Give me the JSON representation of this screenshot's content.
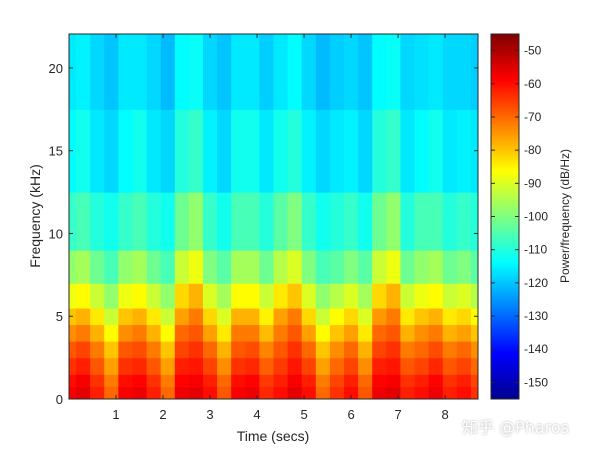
{
  "chart_data": {
    "type": "heatmap",
    "title": "",
    "xlabel": "Time (secs)",
    "ylabel": "Frequency (kHz)",
    "colorbar_label": "Power/frequency (dB/Hz)",
    "xlim": [
      0,
      8.7
    ],
    "ylim": [
      0,
      22.05
    ],
    "xticks": [
      1,
      2,
      3,
      4,
      5,
      6,
      7,
      8
    ],
    "yticks": [
      0,
      5,
      10,
      15,
      20
    ],
    "clim": [
      -155,
      -45
    ],
    "cticks": [
      -50,
      -60,
      -70,
      -80,
      -90,
      -100,
      -110,
      -120,
      -130,
      -140,
      -150
    ],
    "colormap": "jet",
    "grid": false,
    "time_bins": [
      0.0,
      0.3,
      0.6,
      0.9,
      1.2,
      1.5,
      1.8,
      2.1,
      2.4,
      2.7,
      3.0,
      3.3,
      3.6,
      3.9,
      4.2,
      4.5,
      4.8,
      5.1,
      5.4,
      5.7,
      6.0,
      6.3,
      6.6,
      6.9,
      7.2,
      7.5,
      7.8,
      8.1,
      8.4,
      8.7
    ],
    "frequency_bins_khz": [
      0.5,
      1,
      2,
      3,
      4,
      5,
      6,
      8,
      10,
      15,
      20
    ],
    "power_db_per_hz": [
      [
        -58,
        -60,
        -64,
        -68,
        -74,
        -80,
        -88,
        -98,
        -108,
        -114,
        -116
      ],
      [
        -56,
        -58,
        -62,
        -66,
        -72,
        -78,
        -86,
        -96,
        -106,
        -112,
        -115
      ],
      [
        -62,
        -64,
        -68,
        -72,
        -78,
        -84,
        -92,
        -102,
        -110,
        -116,
        -118
      ],
      [
        -70,
        -72,
        -76,
        -80,
        -86,
        -92,
        -98,
        -106,
        -112,
        -118,
        -120
      ],
      [
        -58,
        -60,
        -64,
        -68,
        -74,
        -80,
        -88,
        -98,
        -108,
        -114,
        -116
      ],
      [
        -57,
        -59,
        -63,
        -67,
        -72,
        -78,
        -86,
        -96,
        -106,
        -112,
        -116
      ],
      [
        -62,
        -64,
        -68,
        -72,
        -78,
        -84,
        -92,
        -102,
        -110,
        -116,
        -118
      ],
      [
        -70,
        -72,
        -76,
        -80,
        -86,
        -92,
        -98,
        -106,
        -112,
        -118,
        -121
      ],
      [
        -57,
        -59,
        -62,
        -66,
        -70,
        -76,
        -82,
        -92,
        -102,
        -110,
        -114
      ],
      [
        -56,
        -58,
        -61,
        -64,
        -68,
        -72,
        -78,
        -88,
        -98,
        -108,
        -113
      ],
      [
        -60,
        -62,
        -66,
        -70,
        -76,
        -82,
        -90,
        -100,
        -108,
        -115,
        -118
      ],
      [
        -68,
        -70,
        -74,
        -78,
        -84,
        -90,
        -96,
        -104,
        -112,
        -118,
        -120
      ],
      [
        -58,
        -60,
        -64,
        -68,
        -72,
        -78,
        -86,
        -96,
        -106,
        -112,
        -116
      ],
      [
        -57,
        -59,
        -63,
        -67,
        -72,
        -78,
        -86,
        -96,
        -106,
        -112,
        -116
      ],
      [
        -63,
        -65,
        -69,
        -73,
        -79,
        -85,
        -92,
        -102,
        -110,
        -116,
        -119
      ],
      [
        -60,
        -62,
        -65,
        -68,
        -72,
        -76,
        -84,
        -94,
        -104,
        -112,
        -116
      ],
      [
        -56,
        -58,
        -61,
        -64,
        -68,
        -72,
        -80,
        -90,
        -100,
        -110,
        -114
      ],
      [
        -60,
        -62,
        -66,
        -70,
        -76,
        -82,
        -90,
        -100,
        -108,
        -115,
        -118
      ],
      [
        -70,
        -72,
        -76,
        -80,
        -86,
        -92,
        -98,
        -106,
        -112,
        -118,
        -121
      ],
      [
        -64,
        -66,
        -70,
        -74,
        -80,
        -86,
        -94,
        -104,
        -110,
        -116,
        -119
      ],
      [
        -60,
        -62,
        -66,
        -70,
        -76,
        -82,
        -90,
        -100,
        -108,
        -115,
        -118
      ],
      [
        -68,
        -70,
        -74,
        -78,
        -84,
        -90,
        -96,
        -104,
        -112,
        -118,
        -120
      ],
      [
        -57,
        -59,
        -62,
        -66,
        -70,
        -75,
        -82,
        -92,
        -102,
        -110,
        -114
      ],
      [
        -56,
        -58,
        -61,
        -64,
        -68,
        -72,
        -78,
        -88,
        -98,
        -108,
        -113
      ],
      [
        -62,
        -64,
        -68,
        -72,
        -78,
        -84,
        -92,
        -102,
        -110,
        -116,
        -118
      ],
      [
        -60,
        -62,
        -66,
        -70,
        -74,
        -80,
        -88,
        -98,
        -106,
        -114,
        -117
      ],
      [
        -57,
        -59,
        -63,
        -67,
        -72,
        -78,
        -86,
        -96,
        -106,
        -112,
        -116
      ],
      [
        -62,
        -64,
        -68,
        -72,
        -78,
        -84,
        -92,
        -102,
        -110,
        -116,
        -118
      ],
      [
        -60,
        -62,
        -66,
        -70,
        -76,
        -82,
        -90,
        -100,
        -108,
        -115,
        -118
      ],
      [
        -64,
        -66,
        -70,
        -74,
        -80,
        -86,
        -94,
        -104,
        -110,
        -116,
        -119
      ]
    ]
  },
  "watermark": "知乎 @Pharos"
}
